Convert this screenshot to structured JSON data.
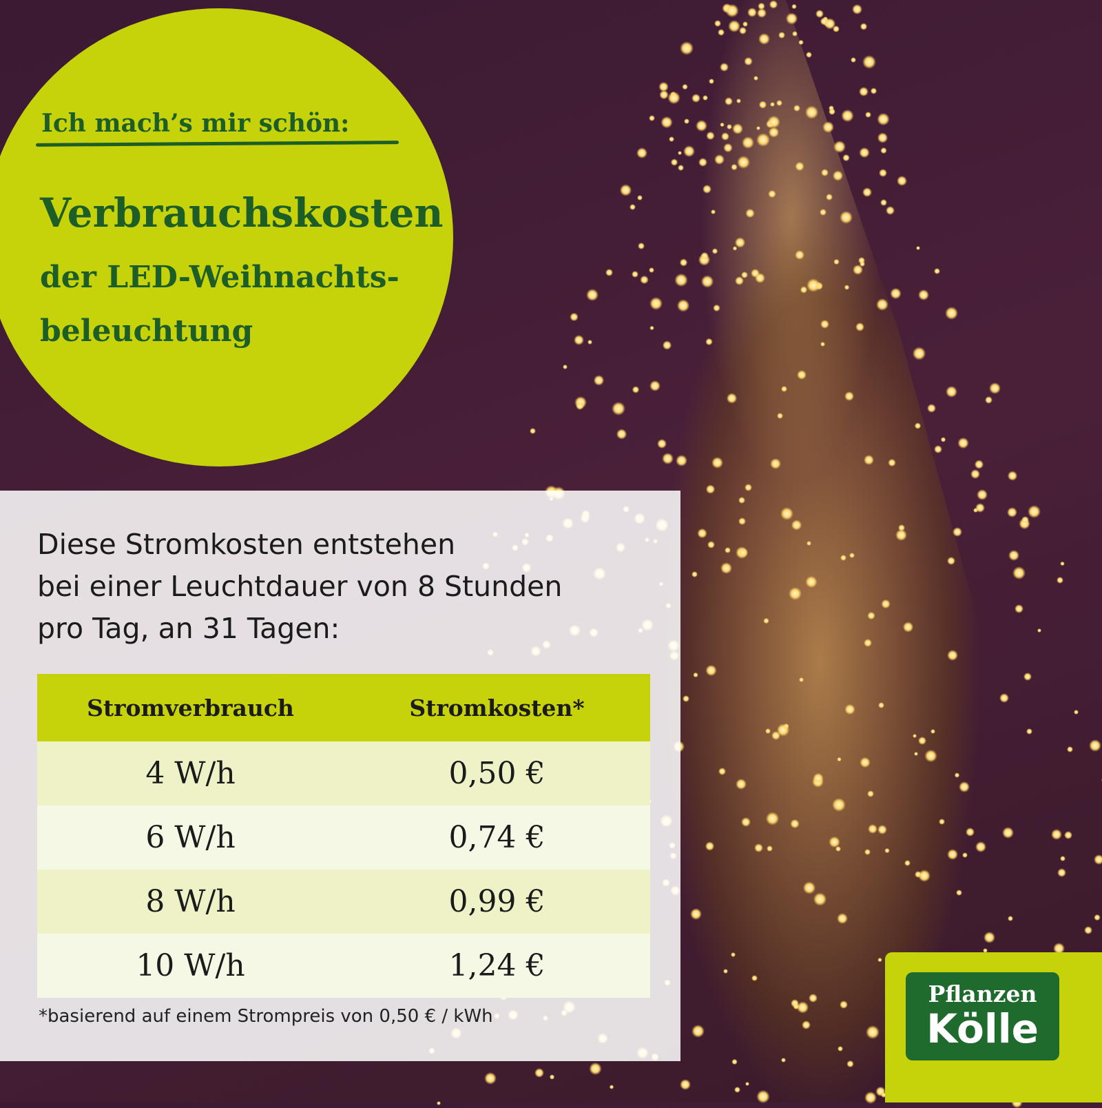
{
  "colors": {
    "lime": "#c6d20a",
    "dark_green": "#1d5e28",
    "logo_green": "#1f6b2e",
    "background": "#3b1a33"
  },
  "header": {
    "kicker": "Ich mach’s mir schön:",
    "title": "Verbrauchskosten",
    "subtitle_line1": "der LED-Weihnachts-",
    "subtitle_line2": "beleuchtung"
  },
  "intro": {
    "line1": "Diese Stromkosten entstehen",
    "line2": "bei einer Leuchtdauer von 8 Stunden",
    "line3": "pro Tag, an 31 Tagen:"
  },
  "table": {
    "headers": [
      "Stromverbrauch",
      "Stromkosten*"
    ],
    "rows": [
      [
        "4 W/h",
        "0,50 €"
      ],
      [
        "6 W/h",
        "0,74 €"
      ],
      [
        "8 W/h",
        "0,99 €"
      ],
      [
        "10 W/h",
        "1,24 €"
      ]
    ]
  },
  "footnote": "*basierend auf einem Strompreis von 0,50 € / kWh",
  "logo": {
    "line1": "Pflanzen",
    "line2": "Kölle"
  }
}
